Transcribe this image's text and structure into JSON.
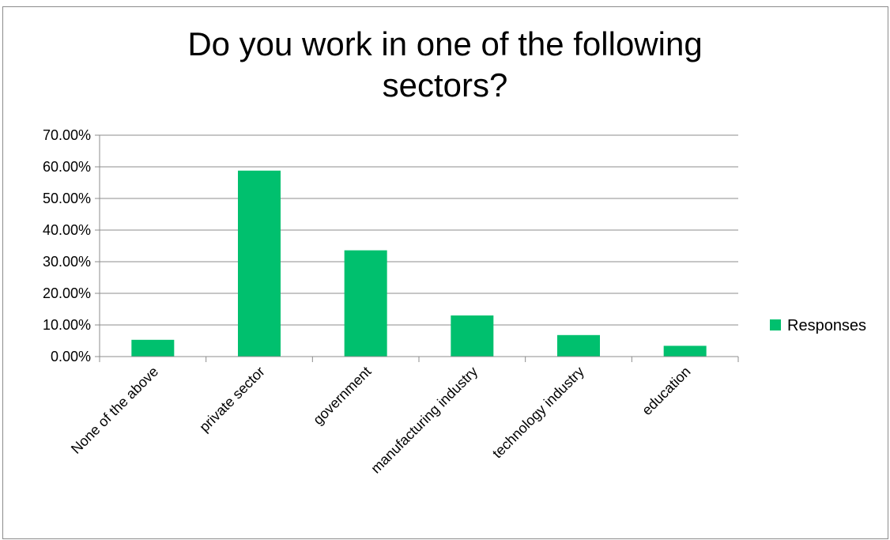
{
  "chart_data": {
    "type": "bar",
    "title_lines": [
      "Do you work in one of the following",
      "sectors?"
    ],
    "categories": [
      "None of the above",
      "private sector",
      "government",
      "manufacturing industry",
      "technology industry",
      "education"
    ],
    "series": [
      {
        "name": "Responses",
        "values": [
          5.3,
          58.8,
          33.6,
          13.0,
          6.8,
          3.4
        ],
        "color": "#00c06e"
      }
    ],
    "ylim": [
      0,
      70
    ],
    "yticks": [
      0,
      10,
      20,
      30,
      40,
      50,
      60,
      70
    ],
    "ytick_labels": [
      "0.00%",
      "10.00%",
      "20.00%",
      "30.00%",
      "40.00%",
      "50.00%",
      "60.00%",
      "70.00%"
    ],
    "grid": true,
    "legend_position": "right"
  }
}
